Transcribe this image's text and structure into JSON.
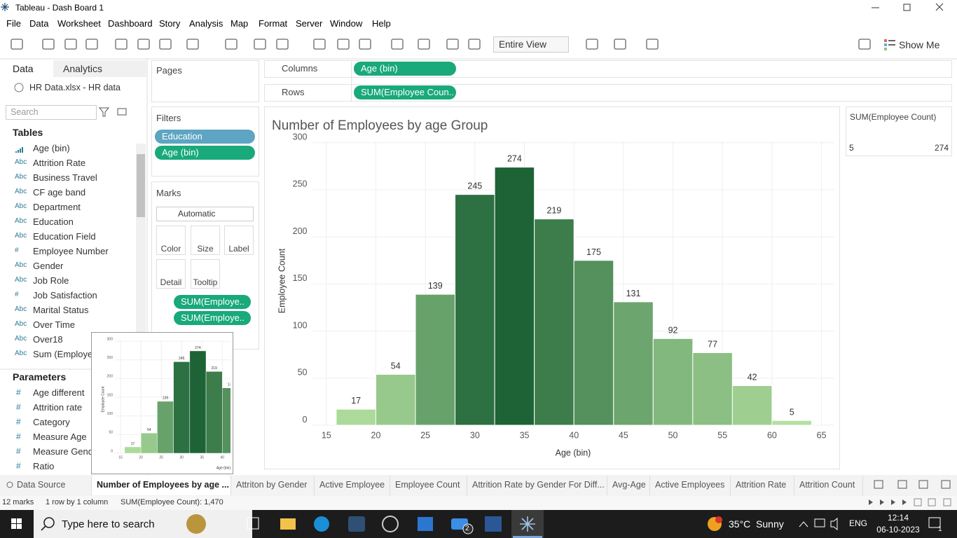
{
  "window": {
    "title": "Tableau - Dash Board 1"
  },
  "menu": [
    "File",
    "Data",
    "Worksheet",
    "Dashboard",
    "Story",
    "Analysis",
    "Map",
    "Format",
    "Server",
    "Window",
    "Help"
  ],
  "toolbar": {
    "fit": "Entire View",
    "show_me": "Show Me"
  },
  "data_pane": {
    "tabs": [
      "Data",
      "Analytics"
    ],
    "source": "HR Data.xlsx - HR data",
    "search": "Search",
    "tables_heading": "Tables",
    "fields": [
      {
        "name": "Age (bin)"
      },
      {
        "icon": "Abc",
        "name": "Attrition Rate"
      },
      {
        "icon": "Abc",
        "name": "Business Travel"
      },
      {
        "icon": "Abc",
        "name": "CF age band"
      },
      {
        "icon": "Abc",
        "name": "Department"
      },
      {
        "icon": "Abc",
        "name": "Education"
      },
      {
        "icon": "Abc",
        "name": "Education Field"
      },
      {
        "icon": "#",
        "name": "Employee Number"
      },
      {
        "icon": "Abc",
        "name": "Gender"
      },
      {
        "icon": "Abc",
        "name": "Job Role"
      },
      {
        "icon": "#",
        "name": "Job Satisfaction"
      },
      {
        "icon": "Abc",
        "name": "Marital Status"
      },
      {
        "icon": "Abc",
        "name": "Over Time"
      },
      {
        "icon": "Abc",
        "name": "Over18"
      },
      {
        "icon": "Abc",
        "name": "Sum (Employee"
      }
    ],
    "parameters_heading": "Parameters",
    "parameters": [
      {
        "icon": "#",
        "name": "Age different"
      },
      {
        "icon": "#",
        "name": "Attrition rate"
      },
      {
        "icon": "#",
        "name": "Category"
      },
      {
        "icon": "#",
        "name": "Measure Age"
      },
      {
        "icon": "#",
        "name": "Measure Gende"
      },
      {
        "icon": "#",
        "name": "Ratio"
      }
    ]
  },
  "pages": {
    "heading": "Pages"
  },
  "filters": {
    "heading": "Filters",
    "pills": [
      "Education",
      "Age (bin)"
    ]
  },
  "marks": {
    "heading": "Marks",
    "mark_type": "Automatic",
    "buttons": [
      "Color",
      "Size",
      "Label",
      "Detail",
      "Tooltip"
    ],
    "pills": [
      "SUM(Employe..",
      "SUM(Employe.."
    ]
  },
  "shelves": {
    "columns_label": "Columns",
    "columns": "Age (bin)",
    "rows_label": "Rows",
    "rows": "SUM(Employee Coun.."
  },
  "chart_data": {
    "type": "histogram",
    "title": "Number of Employees by age Group",
    "x_label": "Age (bin)",
    "y_label": "Employee Count",
    "bins": [
      16,
      20,
      24,
      28,
      32,
      36,
      40,
      44,
      48,
      52,
      56,
      60,
      64
    ],
    "values": [
      17,
      54,
      139,
      245,
      274,
      219,
      175,
      131,
      92,
      77,
      42,
      5
    ],
    "xlim": [
      13.6,
      66.3
    ],
    "ylim": [
      0,
      302
    ],
    "xticks": [
      15,
      20,
      25,
      30,
      35,
      40,
      45,
      50,
      55,
      60,
      65
    ],
    "yticks": [
      0,
      50,
      100,
      150,
      200,
      250,
      300
    ],
    "grid": true,
    "legend": {
      "title": "SUM(Employee Count)",
      "min": 5,
      "max": 274,
      "colors": [
        "#b3e09f",
        "#1d6336"
      ]
    }
  },
  "sheet_tabs": [
    "Data Source",
    "Number of Employees by age ...",
    "Attriton by Gender",
    "Active Employee",
    "Employee  Count",
    "Attrition Rate by Gender For Diff...",
    "Avg-Age",
    "Active Employees",
    "Attrition Rate",
    "Attrition Count"
  ],
  "status": [
    "12 marks",
    "1 row by 1 column",
    "SUM(Employee Count): 1,470"
  ],
  "taskbar": {
    "search": "Type here to search",
    "mail_badge": "2",
    "weather": "35°C  Sunny",
    "language": "ENG",
    "time": "12:14",
    "date": "06-10-2023",
    "notifications": "1"
  }
}
